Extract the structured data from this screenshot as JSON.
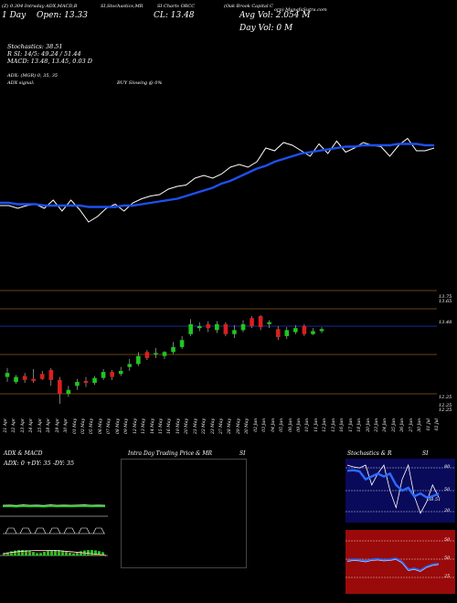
{
  "header": {
    "line1_left": "(Z) 0.304 Intraday ADX,MACD,B",
    "line1_mid": "SI,Stochastics,MR",
    "line1_mid2": "SI Charts ORCC",
    "line1_right": "(Oak Brook Capital C",
    "line1_far_right": "orp) MunafaSutra.com",
    "open_label": "Open: 13.33",
    "close_label": "CL: 13.48",
    "day_label": "1 Day",
    "avg_vol": "Avg Vol: 2.054  M",
    "day_vol": "Day Vol: 0  M"
  },
  "indicators": {
    "stoch": "Stochastics: 38.51",
    "rsi": "R     SI: 14/5: 49.24  / 51.44",
    "macd": "MACD: 13.48, 13.45, 0.03 D",
    "adx": "ADX:                    (MGR) 0, 35,  35",
    "adx_signal": "ADX  signal:",
    "buy_signal": "BUY Slowing @ 0%"
  },
  "price_labels": {
    "top1": "13.75",
    "top2": "13.65",
    "mid": "13.48",
    "low1": "12.25",
    "low2": "12.25",
    "low3": "12.25"
  },
  "dates": [
    "21 Apr",
    "22 Apr",
    "23 Apr",
    "24 Apr",
    "25 Apr",
    "28 Apr",
    "29 Apr",
    "30 Apr",
    "01 May",
    "02 May",
    "05 May",
    "06 May",
    "07 May",
    "08 May",
    "09 May",
    "12 May",
    "13 May",
    "14 May",
    "15 May",
    "16 May",
    "19 May",
    "20 May",
    "21 May",
    "22 May",
    "23 May",
    "27 May",
    "28 May",
    "29 May",
    "30 May",
    "02 Jun",
    "03 Jun",
    "04 Jun",
    "05 Jun",
    "06 Jun",
    "09 Jun",
    "10 Jun",
    "11 Jun",
    "12 Jun",
    "13 Jun",
    "16 Jun",
    "17 Jun",
    "18 Jun",
    "20 Jun",
    "23 Jun",
    "24 Jun",
    "25 Jun",
    "26 Jun",
    "27 Jun",
    "30 Jun",
    "01 Jul",
    "02 Jul"
  ],
  "bottom_panels": {
    "left_title": "ADX  & MACD",
    "left_sub": "ADX: 0  +DY: 35 -DY: 35",
    "mid_title": "Intra  Day Trading Price  & MR",
    "mid_title2": "SI",
    "right_title": "Stochastics & R",
    "right_title2": "SI",
    "stoch_axis": [
      "80",
      "50",
      "20"
    ],
    "rsi_axis": [
      "50",
      "50",
      "25"
    ],
    "stoch_value": "38.51"
  },
  "colors": {
    "up": "#1ec81e",
    "down": "#dc1e1e",
    "ma": "#1e50f0",
    "stoch_bg": "#0a0a5a",
    "rsi_bg": "#9a0a0a"
  },
  "chart_data": {
    "type": "candlestick",
    "close_line": [
      0.3,
      0.3,
      0.28,
      0.3,
      0.31,
      0.28,
      0.34,
      0.26,
      0.34,
      0.27,
      0.18,
      0.22,
      0.28,
      0.31,
      0.26,
      0.32,
      0.35,
      0.37,
      0.38,
      0.42,
      0.44,
      0.45,
      0.5,
      0.52,
      0.5,
      0.53,
      0.58,
      0.6,
      0.58,
      0.62,
      0.72,
      0.7,
      0.76,
      0.74,
      0.7,
      0.66,
      0.75,
      0.68,
      0.77,
      0.69,
      0.72,
      0.76,
      0.74,
      0.73,
      0.66,
      0.74,
      0.79,
      0.7,
      0.7,
      0.72
    ],
    "ma_line": [
      0.32,
      0.32,
      0.31,
      0.31,
      0.31,
      0.3,
      0.3,
      0.3,
      0.3,
      0.3,
      0.29,
      0.29,
      0.29,
      0.29,
      0.3,
      0.3,
      0.31,
      0.32,
      0.33,
      0.34,
      0.35,
      0.37,
      0.39,
      0.41,
      0.43,
      0.46,
      0.48,
      0.51,
      0.54,
      0.57,
      0.59,
      0.62,
      0.64,
      0.66,
      0.68,
      0.69,
      0.7,
      0.71,
      0.72,
      0.73,
      0.73,
      0.74,
      0.74,
      0.74,
      0.74,
      0.75,
      0.75,
      0.75,
      0.74,
      0.74
    ],
    "candles": [
      {
        "o": 0.27,
        "c": 0.31,
        "h": 0.36,
        "l": 0.22
      },
      {
        "o": 0.22,
        "c": 0.27,
        "h": 0.29,
        "l": 0.2
      },
      {
        "o": 0.28,
        "c": 0.24,
        "h": 0.31,
        "l": 0.21
      },
      {
        "o": 0.25,
        "c": 0.23,
        "h": 0.35,
        "l": 0.21
      },
      {
        "o": 0.3,
        "c": 0.25,
        "h": 0.33,
        "l": 0.24
      },
      {
        "o": 0.34,
        "c": 0.24,
        "h": 0.36,
        "l": 0.18
      },
      {
        "o": 0.24,
        "c": 0.1,
        "h": 0.27,
        "l": 0.0
      },
      {
        "o": 0.1,
        "c": 0.14,
        "h": 0.18,
        "l": 0.07
      },
      {
        "o": 0.18,
        "c": 0.22,
        "h": 0.25,
        "l": 0.14
      },
      {
        "o": 0.23,
        "c": 0.21,
        "h": 0.27,
        "l": 0.17
      },
      {
        "o": 0.21,
        "c": 0.26,
        "h": 0.28,
        "l": 0.19
      },
      {
        "o": 0.26,
        "c": 0.32,
        "h": 0.35,
        "l": 0.24
      },
      {
        "o": 0.32,
        "c": 0.27,
        "h": 0.34,
        "l": 0.24
      },
      {
        "o": 0.3,
        "c": 0.33,
        "h": 0.37,
        "l": 0.28
      },
      {
        "o": 0.37,
        "c": 0.4,
        "h": 0.45,
        "l": 0.33
      },
      {
        "o": 0.4,
        "c": 0.48,
        "h": 0.52,
        "l": 0.38
      },
      {
        "o": 0.52,
        "c": 0.46,
        "h": 0.54,
        "l": 0.44
      },
      {
        "o": 0.5,
        "c": 0.51,
        "h": 0.56,
        "l": 0.46
      },
      {
        "o": 0.48,
        "c": 0.52,
        "h": 0.53,
        "l": 0.45
      },
      {
        "o": 0.52,
        "c": 0.57,
        "h": 0.62,
        "l": 0.5
      },
      {
        "o": 0.57,
        "c": 0.64,
        "h": 0.68,
        "l": 0.55
      },
      {
        "o": 0.7,
        "c": 0.8,
        "h": 0.85,
        "l": 0.68
      },
      {
        "o": 0.76,
        "c": 0.78,
        "h": 0.82,
        "l": 0.73
      },
      {
        "o": 0.8,
        "c": 0.76,
        "h": 0.83,
        "l": 0.72
      },
      {
        "o": 0.74,
        "c": 0.8,
        "h": 0.83,
        "l": 0.71
      },
      {
        "o": 0.8,
        "c": 0.7,
        "h": 0.82,
        "l": 0.68
      },
      {
        "o": 0.7,
        "c": 0.74,
        "h": 0.79,
        "l": 0.66
      },
      {
        "o": 0.74,
        "c": 0.8,
        "h": 0.84,
        "l": 0.72
      },
      {
        "o": 0.86,
        "c": 0.78,
        "h": 0.88,
        "l": 0.76
      },
      {
        "o": 0.88,
        "c": 0.77,
        "h": 0.89,
        "l": 0.74
      },
      {
        "o": 0.8,
        "c": 0.82,
        "h": 0.84,
        "l": 0.76
      },
      {
        "o": 0.75,
        "c": 0.67,
        "h": 0.78,
        "l": 0.64
      },
      {
        "o": 0.68,
        "c": 0.74,
        "h": 0.77,
        "l": 0.65
      },
      {
        "o": 0.72,
        "c": 0.76,
        "h": 0.79,
        "l": 0.7
      },
      {
        "o": 0.78,
        "c": 0.7,
        "h": 0.8,
        "l": 0.68
      },
      {
        "o": 0.7,
        "c": 0.73,
        "h": 0.76,
        "l": 0.69
      },
      {
        "o": 0.73,
        "c": 0.75,
        "h": 0.77,
        "l": 0.71
      }
    ],
    "adx": [
      0.55,
      0.56,
      0.54,
      0.57,
      0.55,
      0.56,
      0.54,
      0.57,
      0.55,
      0.56,
      0.55,
      0.56,
      0.57,
      0.55,
      0.56,
      0.55
    ],
    "stochastics": [
      0.95,
      0.92,
      0.9,
      0.95,
      0.6,
      0.8,
      0.95,
      0.5,
      0.2,
      0.7,
      0.95,
      0.4,
      0.1,
      0.3,
      0.6,
      0.38
    ],
    "rsi_series": [
      0.85,
      0.86,
      0.84,
      0.7,
      0.75,
      0.8,
      0.75,
      0.8,
      0.6,
      0.5,
      0.55,
      0.4,
      0.45,
      0.38,
      0.4,
      0.45
    ],
    "mrsi_series": [
      0.48,
      0.5,
      0.49,
      0.47,
      0.5,
      0.51,
      0.49,
      0.5,
      0.52,
      0.45,
      0.3,
      0.32,
      0.28,
      0.36,
      0.4,
      0.42
    ]
  }
}
